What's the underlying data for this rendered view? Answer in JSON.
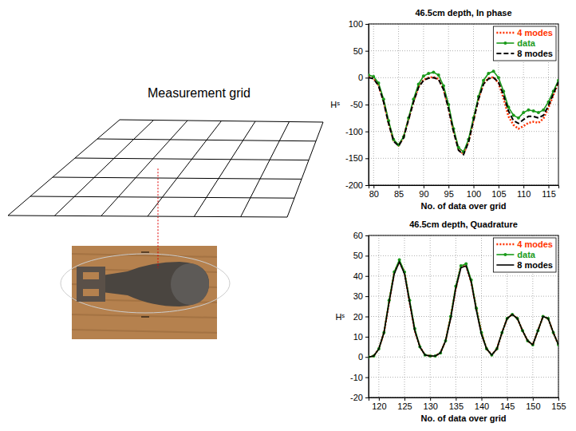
{
  "diagram": {
    "title": "Measurement grid"
  },
  "chart_data": [
    {
      "type": "line",
      "title": "46.5cm depth, In phase",
      "xlabel": "No. of data over grid",
      "ylabel": "Hˢ",
      "x": [
        79,
        80,
        81,
        82,
        83,
        84,
        85,
        86,
        87,
        88,
        89,
        90,
        91,
        92,
        93,
        94,
        95,
        96,
        97,
        98,
        99,
        100,
        101,
        102,
        103,
        104,
        105,
        106,
        107,
        108,
        109,
        110,
        111,
        112,
        113,
        114,
        115,
        116,
        117
      ],
      "xlim": [
        79,
        117
      ],
      "xticks": [
        80,
        85,
        90,
        95,
        100,
        105,
        110,
        115
      ],
      "ylim": [
        -200,
        100
      ],
      "yticks": [
        -200,
        -150,
        -100,
        -50,
        0,
        50,
        100
      ],
      "grid": true,
      "legend": "upper right",
      "series": [
        {
          "name": "4 modes",
          "color": "#ff3300",
          "line_style": "dotted",
          "values": [
            2,
            -1,
            -14,
            -44,
            -84,
            -117,
            -126,
            -111,
            -77,
            -44,
            -17,
            -4,
            0,
            1,
            -2,
            -21,
            -57,
            -99,
            -134,
            -142,
            -119,
            -79,
            -39,
            -11,
            -1,
            1,
            -10,
            -38,
            -72,
            -88,
            -95,
            -90,
            -84,
            -82,
            -84,
            -76,
            -56,
            -32,
            -9
          ]
        },
        {
          "name": "data",
          "color": "#1a9a1a",
          "line_style": "solid",
          "marker": "circle",
          "values": [
            5,
            2,
            -10,
            -40,
            -80,
            -115,
            -125,
            -110,
            -75,
            -40,
            -12,
            3,
            8,
            10,
            5,
            -15,
            -50,
            -95,
            -130,
            -138,
            -115,
            -75,
            -35,
            -5,
            8,
            12,
            0,
            -25,
            -55,
            -70,
            -75,
            -65,
            -60,
            -62,
            -65,
            -60,
            -45,
            -25,
            -5
          ]
        },
        {
          "name": "8 modes",
          "color": "#000000",
          "line_style": "dashed",
          "values": [
            0,
            -2,
            -15,
            -45,
            -85,
            -118,
            -127,
            -112,
            -78,
            -45,
            -18,
            -5,
            -1,
            0,
            -3,
            -22,
            -58,
            -100,
            -135,
            -143,
            -120,
            -80,
            -40,
            -12,
            -2,
            0,
            -8,
            -32,
            -62,
            -80,
            -85,
            -78,
            -72,
            -72,
            -75,
            -70,
            -52,
            -30,
            -8
          ]
        }
      ]
    },
    {
      "type": "line",
      "title": "46.5cm depth, Quadrature",
      "xlabel": "No. of data over grid",
      "ylabel": "Hˢ",
      "x": [
        118,
        119,
        120,
        121,
        122,
        123,
        124,
        125,
        126,
        127,
        128,
        129,
        130,
        131,
        132,
        133,
        134,
        135,
        136,
        137,
        138,
        139,
        140,
        141,
        142,
        143,
        144,
        145,
        146,
        147,
        148,
        149,
        150,
        151,
        152,
        153,
        154,
        155
      ],
      "xlim": [
        118,
        155
      ],
      "xticks": [
        120,
        125,
        130,
        135,
        140,
        145,
        150,
        155
      ],
      "ylim": [
        -20,
        60
      ],
      "yticks": [
        -20,
        -10,
        0,
        10,
        20,
        30,
        40,
        50,
        60
      ],
      "grid": true,
      "legend": "upper right",
      "series": [
        {
          "name": "4 modes",
          "color": "#ff3300",
          "line_style": "dotted",
          "values": [
            0,
            0.5,
            4,
            12,
            27,
            42,
            47,
            42,
            27,
            13,
            5,
            1,
            0.5,
            0.5,
            2,
            8,
            20,
            34,
            45,
            45,
            37,
            24,
            12,
            4,
            1,
            4,
            12,
            19,
            21,
            19,
            13,
            8,
            6,
            13,
            20,
            19,
            12,
            6
          ]
        },
        {
          "name": "data",
          "color": "#1a9a1a",
          "line_style": "solid",
          "marker": "circle",
          "values": [
            0,
            0.5,
            4,
            12,
            28,
            42,
            48,
            42,
            28,
            14,
            5,
            1,
            0.5,
            0.5,
            2,
            8,
            20,
            35,
            45,
            46,
            38,
            24,
            12,
            4,
            1,
            4,
            12,
            19,
            21,
            19,
            13,
            8,
            6,
            13,
            20,
            19,
            12,
            6
          ]
        },
        {
          "name": "8 modes",
          "color": "#000000",
          "line_style": "solid",
          "values": [
            0,
            0.5,
            4,
            12,
            27,
            41,
            47,
            41,
            27,
            13,
            5,
            1,
            0.5,
            0.5,
            2,
            8,
            19,
            34,
            44,
            45,
            37,
            23,
            11,
            4,
            1,
            4,
            12,
            19,
            21,
            19,
            13,
            8,
            6,
            13,
            20,
            19,
            12,
            6
          ]
        }
      ]
    }
  ]
}
